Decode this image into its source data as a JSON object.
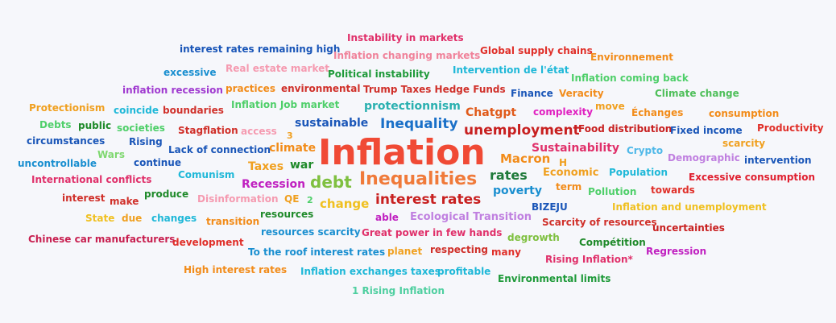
{
  "words": [
    {
      "text": "Instability in markets",
      "color": "#e0306a"
    },
    {
      "text": "interest rates remaining high",
      "color": "#1a56b8"
    },
    {
      "text": "Global supply chains",
      "color": "#e0302a"
    },
    {
      "text": "Inflation changing markets",
      "color": "#f0829a"
    },
    {
      "text": "Environnement",
      "color": "#f28c1a"
    },
    {
      "text": "excessive",
      "color": "#1a8fd0"
    },
    {
      "text": "Real estate market",
      "color": "#f59ab0"
    },
    {
      "text": "Political instability",
      "color": "#1f9a3a"
    },
    {
      "text": "Intervention de l'état",
      "color": "#1fb8d8"
    },
    {
      "text": "Inflation coming back",
      "color": "#4fcf6a"
    },
    {
      "text": "inflation recession",
      "color": "#a03ad0"
    },
    {
      "text": "practices",
      "color": "#f28c1a"
    },
    {
      "text": "environmental",
      "color": "#d0302a"
    },
    {
      "text": "Trump Taxes Hedge Funds",
      "color": "#d0302a"
    },
    {
      "text": "Finance",
      "color": "#1a56b8"
    },
    {
      "text": "Veracity",
      "color": "#f28c1a"
    },
    {
      "text": "Climate change",
      "color": "#4fbf5a"
    },
    {
      "text": "Protectionism",
      "color": "#f0a020"
    },
    {
      "text": "coincide",
      "color": "#1fb8d8"
    },
    {
      "text": "boundaries",
      "color": "#d0302a"
    },
    {
      "text": "Inflation Job market",
      "color": "#4fcf6a"
    },
    {
      "text": "protectionnism",
      "color": "#2ab0b0"
    },
    {
      "text": "Chatgpt",
      "color": "#e05a1a"
    },
    {
      "text": "complexity",
      "color": "#e020c0"
    },
    {
      "text": "move",
      "color": "#f0a020"
    },
    {
      "text": "Échanges",
      "color": "#f28c1a"
    },
    {
      "text": "consumption",
      "color": "#f28c1a"
    },
    {
      "text": "Debts",
      "color": "#4fcf6a"
    },
    {
      "text": "public",
      "color": "#1f8a2a"
    },
    {
      "text": "societies",
      "color": "#4fcf6a"
    },
    {
      "text": "Stagflation",
      "color": "#d0302a"
    },
    {
      "text": "access",
      "color": "#f59ab0"
    },
    {
      "text": "3",
      "color": "#f0a020"
    },
    {
      "text": "sustainable",
      "color": "#1a56b8"
    },
    {
      "text": "Inequality",
      "color": "#1a70c8"
    },
    {
      "text": "unemployment",
      "color": "#c82020"
    },
    {
      "text": "Food distribution",
      "color": "#c82020"
    },
    {
      "text": "Fixed income",
      "color": "#1a56b8"
    },
    {
      "text": "Productivity",
      "color": "#e0302a"
    },
    {
      "text": "circumstances",
      "color": "#1a56b8"
    },
    {
      "text": "Rising",
      "color": "#1a56b8"
    },
    {
      "text": "Inflation",
      "color": "#f04a35"
    },
    {
      "text": "climate",
      "color": "#f28c1a"
    },
    {
      "text": "Sustainability",
      "color": "#e0306a"
    },
    {
      "text": "Crypto",
      "color": "#4fb8e8"
    },
    {
      "text": "scarcity",
      "color": "#f0a020"
    },
    {
      "text": "Wars",
      "color": "#7fd870"
    },
    {
      "text": "Lack of connection",
      "color": "#1a56b8"
    },
    {
      "text": "Macron",
      "color": "#f28c1a"
    },
    {
      "text": "H",
      "color": "#f0a020"
    },
    {
      "text": "Demographic",
      "color": "#c080e0"
    },
    {
      "text": "intervention",
      "color": "#1a56b8"
    },
    {
      "text": "uncontrollable",
      "color": "#1a8fd0"
    },
    {
      "text": "continue",
      "color": "#1a56b8"
    },
    {
      "text": "Taxes",
      "color": "#f0a020"
    },
    {
      "text": "war",
      "color": "#1f8a2a"
    },
    {
      "text": "Economic",
      "color": "#f0a020"
    },
    {
      "text": "Population",
      "color": "#1fb8d8"
    },
    {
      "text": "Excessive consumption",
      "color": "#e02030"
    },
    {
      "text": "International conflicts",
      "color": "#e0306a"
    },
    {
      "text": "Comunism",
      "color": "#1fb8d8"
    },
    {
      "text": "debt",
      "color": "#7fc040"
    },
    {
      "text": "Inequalities",
      "color": "#f07a3a"
    },
    {
      "text": "rates",
      "color": "#1f7a3a"
    },
    {
      "text": "Recession",
      "color": "#c020c0"
    },
    {
      "text": "term",
      "color": "#f28c1a"
    },
    {
      "text": "Pollution",
      "color": "#4fcf6a"
    },
    {
      "text": "towards",
      "color": "#e0302a"
    },
    {
      "text": "interest",
      "color": "#d0302a"
    },
    {
      "text": "make",
      "color": "#d0302a"
    },
    {
      "text": "produce",
      "color": "#1f8a2a"
    },
    {
      "text": "Disinformation",
      "color": "#f59ab0"
    },
    {
      "text": "QE",
      "color": "#f0a020"
    },
    {
      "text": "2",
      "color": "#4fcf6a"
    },
    {
      "text": "change",
      "color": "#f0c020"
    },
    {
      "text": "interest rates",
      "color": "#c82020"
    },
    {
      "text": "poverty",
      "color": "#1a8fd0"
    },
    {
      "text": "BIZEJU",
      "color": "#1a56b8"
    },
    {
      "text": "Inflation and unemployment",
      "color": "#f0c020"
    },
    {
      "text": "State",
      "color": "#f0c020"
    },
    {
      "text": "due",
      "color": "#f0a020"
    },
    {
      "text": "changes",
      "color": "#1fb8d8"
    },
    {
      "text": "transition",
      "color": "#f28c1a"
    },
    {
      "text": "resources",
      "color": "#1f8a2a"
    },
    {
      "text": "able",
      "color": "#c020c0"
    },
    {
      "text": "Ecological Transition",
      "color": "#c080e0"
    },
    {
      "text": "Scarcity of resources",
      "color": "#d0302a"
    },
    {
      "text": "uncertainties",
      "color": "#c82020"
    },
    {
      "text": "Chinese car manufacturers",
      "color": "#c82050"
    },
    {
      "text": "development",
      "color": "#e0302a"
    },
    {
      "text": "resources scarcity",
      "color": "#1a8fd0"
    },
    {
      "text": "Great power in few hands",
      "color": "#e0306a"
    },
    {
      "text": "degrowth",
      "color": "#7fc040"
    },
    {
      "text": "Compétition",
      "color": "#1f8a2a"
    },
    {
      "text": "To the roof interest rates",
      "color": "#1a8fd0"
    },
    {
      "text": "planet",
      "color": "#f0a020"
    },
    {
      "text": "respecting",
      "color": "#d0302a"
    },
    {
      "text": "many",
      "color": "#e0302a"
    },
    {
      "text": "Rising Inflation*",
      "color": "#e0306a"
    },
    {
      "text": "Regression",
      "color": "#c020c0"
    },
    {
      "text": "High interest rates",
      "color": "#f28c1a"
    },
    {
      "text": "Inflation exchanges taxes",
      "color": "#1fb8d8"
    },
    {
      "text": "profitable",
      "color": "#1fb8d8"
    },
    {
      "text": "Environmental limits",
      "color": "#1f9a3a"
    },
    {
      "text": "1 Rising Inflation",
      "color": "#4fcfa0"
    }
  ]
}
